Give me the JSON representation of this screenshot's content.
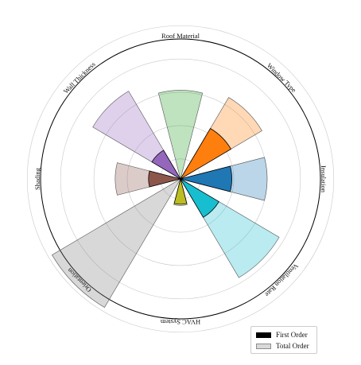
{
  "chart_data": {
    "type": "polar-bar",
    "categories": [
      "Insulation",
      "Window Type",
      "Roof Material",
      "Wall Thickness",
      "Shading",
      "Orientation",
      "HVAC System",
      "Ventilation Rate"
    ],
    "series": [
      {
        "name": "First Order",
        "values": [
          0.47,
          0.58,
          0.0,
          0.2,
          0.18,
          0.0,
          0.08,
          0.37
        ]
      },
      {
        "name": "Total Order",
        "values": [
          1.0,
          1.12,
          1.03,
          1.23,
          0.68,
          1.94,
          0.1,
          1.42
        ]
      }
    ],
    "colors": [
      "#1f77b4",
      "#ff7f0e",
      "#2ca02c",
      "#9467bd",
      "#8c564b",
      "#7f7f7f",
      "#bcbd22",
      "#17becf"
    ],
    "first_order_colors": [
      "#1f77b4",
      "#ff7f0e",
      "#2ca02c",
      "#9467bd",
      "#8c564b",
      "#7f7f7f",
      "#bcbd22",
      "#17becf"
    ],
    "total_alpha": 0.3,
    "r_max": 2.1,
    "r_inner": 0.3,
    "grid": true,
    "legend_position": "lower-right"
  },
  "legend": {
    "first_order": "First Order",
    "total_order": "Total Order"
  }
}
